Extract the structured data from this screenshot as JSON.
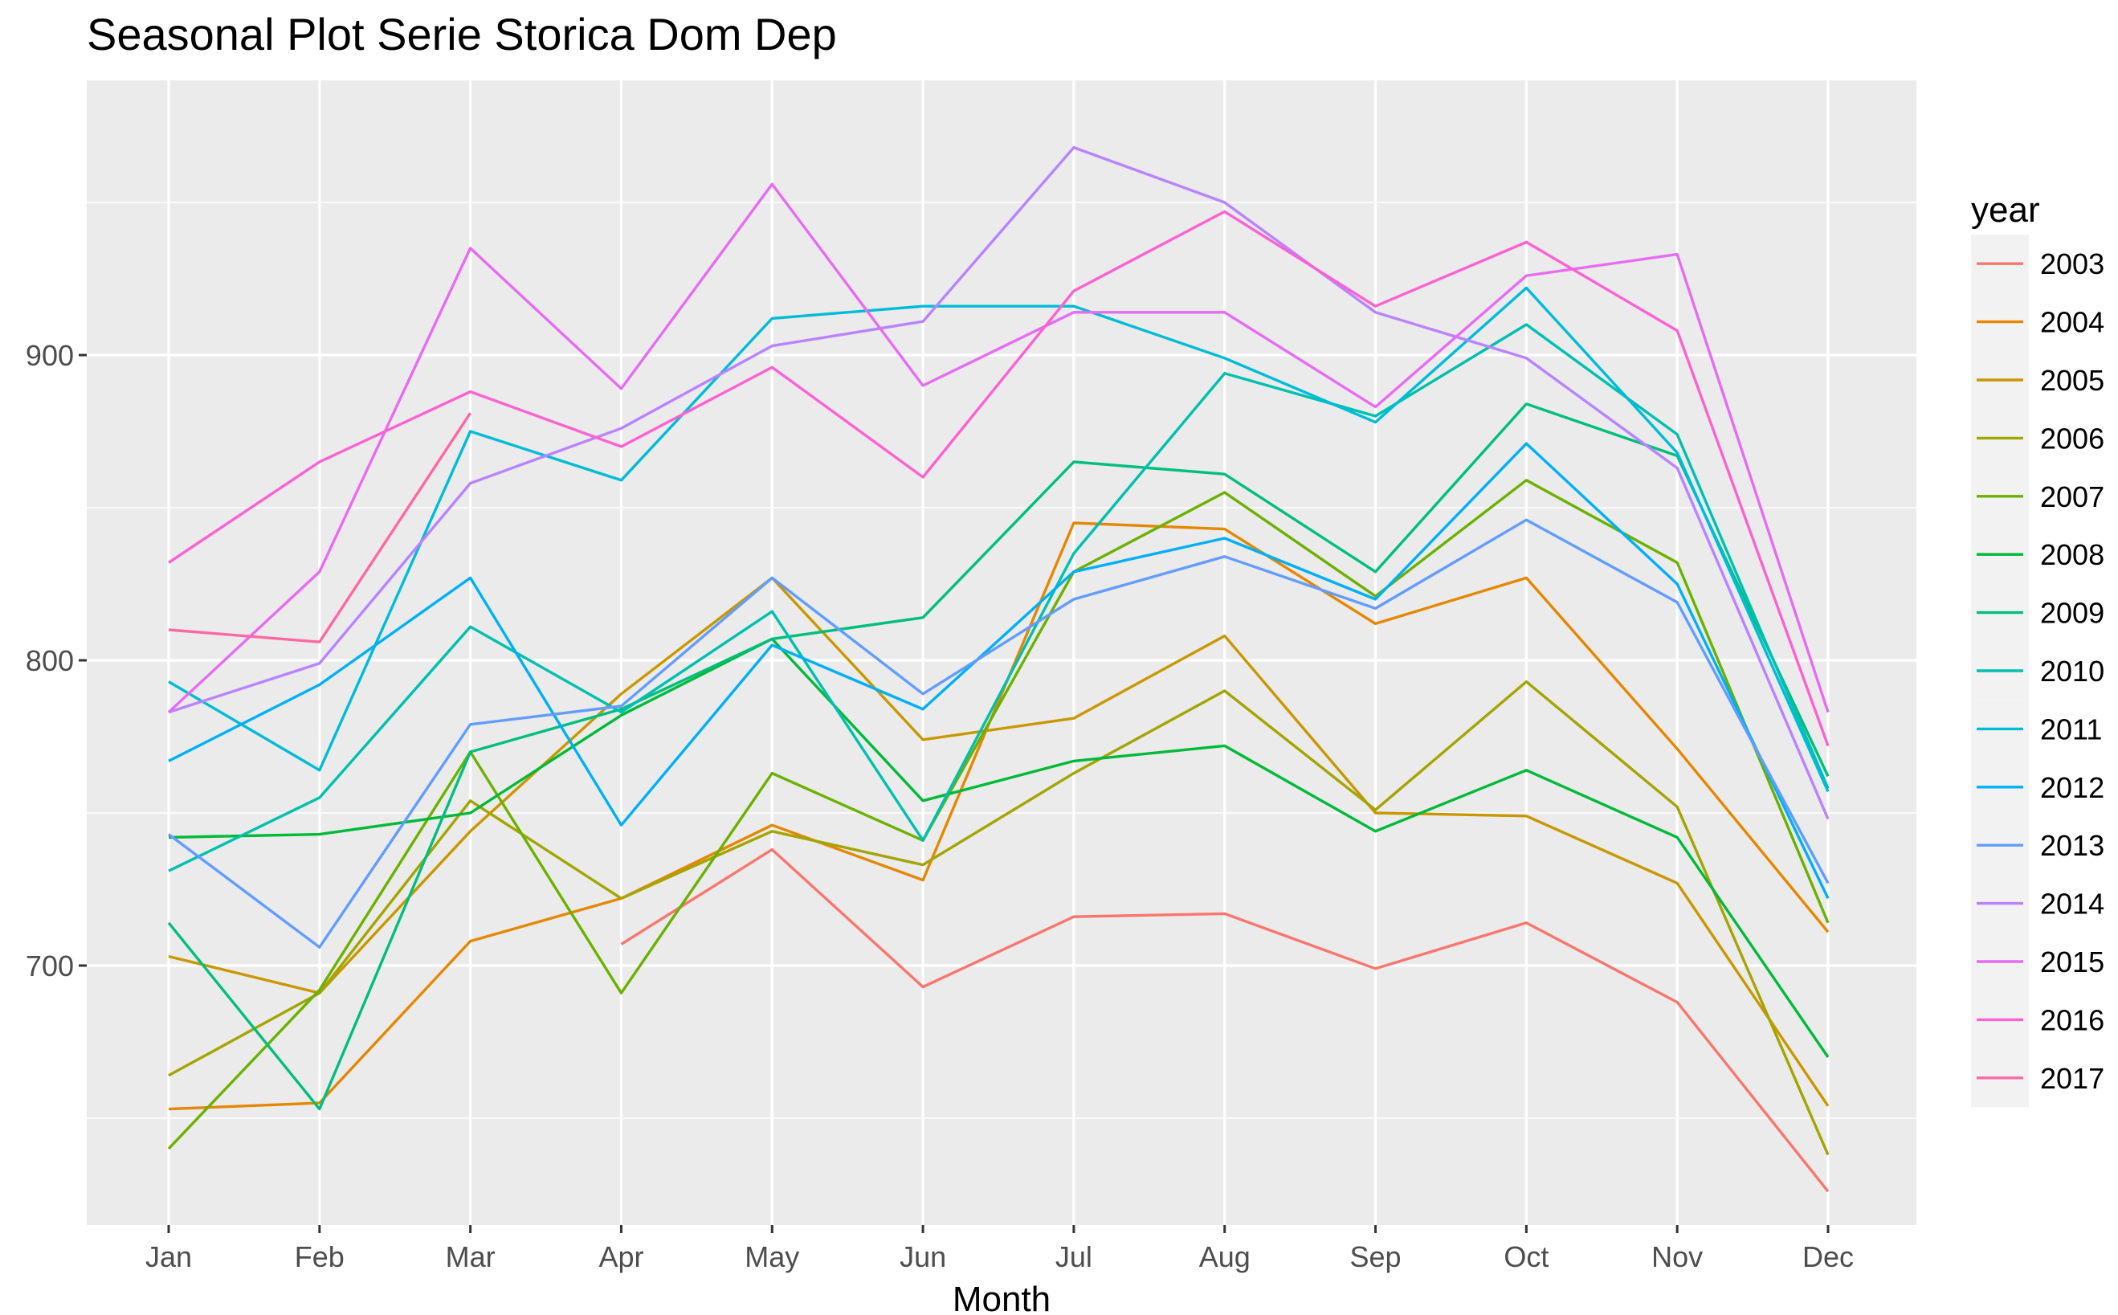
{
  "chart_data": {
    "type": "line",
    "title": "Seasonal Plot Serie Storica Dom Dep",
    "xlabel": "Month",
    "ylabel": "",
    "categories": [
      "Jan",
      "Feb",
      "Mar",
      "Apr",
      "May",
      "Jun",
      "Jul",
      "Aug",
      "Sep",
      "Oct",
      "Nov",
      "Dec"
    ],
    "ylim": [
      615,
      990
    ],
    "yticks": [
      700,
      800,
      900
    ],
    "grid": true,
    "legend": {
      "title": "year",
      "position": "right"
    },
    "series": [
      {
        "name": "2003",
        "color": "#F8766D",
        "values": [
          null,
          null,
          null,
          707,
          738,
          693,
          716,
          717,
          699,
          714,
          688,
          626
        ]
      },
      {
        "name": "2004",
        "color": "#E58700",
        "values": [
          653,
          655,
          708,
          722,
          746,
          728,
          845,
          843,
          812,
          827,
          771,
          711
        ]
      },
      {
        "name": "2005",
        "color": "#C99800",
        "values": [
          703,
          691,
          744,
          789,
          827,
          774,
          781,
          808,
          750,
          749,
          727,
          654
        ]
      },
      {
        "name": "2006",
        "color": "#A3A500",
        "values": [
          664,
          691,
          754,
          722,
          744,
          733,
          763,
          790,
          751,
          793,
          752,
          638
        ]
      },
      {
        "name": "2007",
        "color": "#6BB100",
        "values": [
          640,
          692,
          770,
          691,
          763,
          741,
          829,
          855,
          821,
          859,
          832,
          714
        ]
      },
      {
        "name": "2008",
        "color": "#00BA38",
        "values": [
          742,
          743,
          750,
          782,
          807,
          754,
          767,
          772,
          744,
          764,
          742,
          670
        ]
      },
      {
        "name": "2009",
        "color": "#00BF7D",
        "values": [
          714,
          653,
          770,
          784,
          807,
          814,
          865,
          861,
          829,
          884,
          867,
          762
        ]
      },
      {
        "name": "2010",
        "color": "#00C0AF",
        "values": [
          731,
          755,
          811,
          783,
          816,
          741,
          835,
          894,
          880,
          910,
          874,
          758
        ]
      },
      {
        "name": "2011",
        "color": "#00BCD8",
        "values": [
          793,
          764,
          875,
          859,
          912,
          916,
          916,
          899,
          878,
          922,
          868,
          757
        ]
      },
      {
        "name": "2012",
        "color": "#00B0F6",
        "values": [
          767,
          792,
          827,
          746,
          805,
          784,
          829,
          840,
          820,
          871,
          825,
          722
        ]
      },
      {
        "name": "2013",
        "color": "#619CFF",
        "values": [
          743,
          706,
          779,
          785,
          827,
          789,
          820,
          834,
          817,
          846,
          819,
          727
        ]
      },
      {
        "name": "2014",
        "color": "#B983FF",
        "values": [
          783,
          799,
          858,
          876,
          903,
          911,
          968,
          950,
          914,
          899,
          863,
          748
        ]
      },
      {
        "name": "2015",
        "color": "#E76BF3",
        "values": [
          783,
          829,
          935,
          889,
          956,
          890,
          914,
          914,
          883,
          926,
          933,
          783
        ]
      },
      {
        "name": "2016",
        "color": "#FD61D1",
        "values": [
          832,
          865,
          888,
          870,
          896,
          860,
          921,
          947,
          916,
          937,
          908,
          772
        ]
      },
      {
        "name": "2017",
        "color": "#FF67A4",
        "values": [
          810,
          806,
          881,
          null,
          null,
          null,
          null,
          null,
          null,
          null,
          null,
          null
        ]
      }
    ]
  }
}
